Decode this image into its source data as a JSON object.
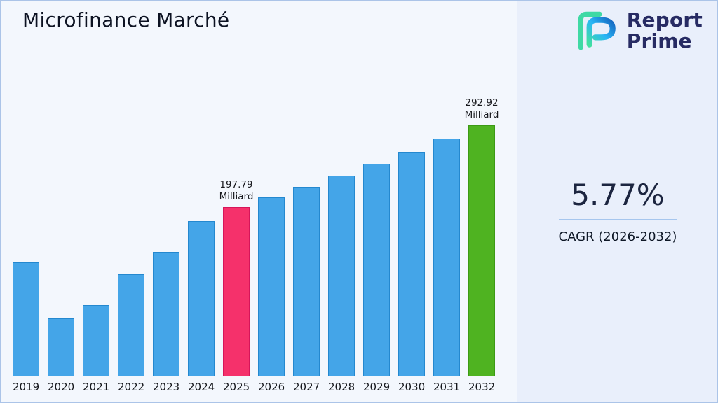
{
  "page": {
    "title": "Microfinance Marché",
    "logo": {
      "line1": "Report",
      "line2": "Prime"
    },
    "cagr": {
      "value": "5.77%",
      "label": "CAGR (2026-2032)"
    }
  },
  "chart_data": {
    "type": "bar",
    "title": "Microfinance Marché",
    "unit": "Milliard",
    "categories": [
      "2019",
      "2020",
      "2021",
      "2022",
      "2023",
      "2024",
      "2025",
      "2026",
      "2027",
      "2028",
      "2029",
      "2030",
      "2031",
      "2032"
    ],
    "values": [
      133,
      68,
      83,
      119,
      145,
      181,
      197.79,
      209.2,
      221.3,
      234.1,
      247.6,
      261.9,
      277,
      292.92
    ],
    "ylim": [
      0,
      310
    ],
    "grid": false,
    "legend": "none",
    "colors": {
      "default": "#44a5e8",
      "2025": "#f5316b",
      "2032": "#4fb321"
    },
    "border_colors": {
      "default": "#2488cf",
      "2025": "#d6155a",
      "2032": "#3c9a15"
    },
    "annotations": [
      {
        "category": "2025",
        "line1": "197.79",
        "line2": "Milliard"
      },
      {
        "category": "2032",
        "line1": "292.92",
        "line2": "Milliard"
      }
    ]
  }
}
